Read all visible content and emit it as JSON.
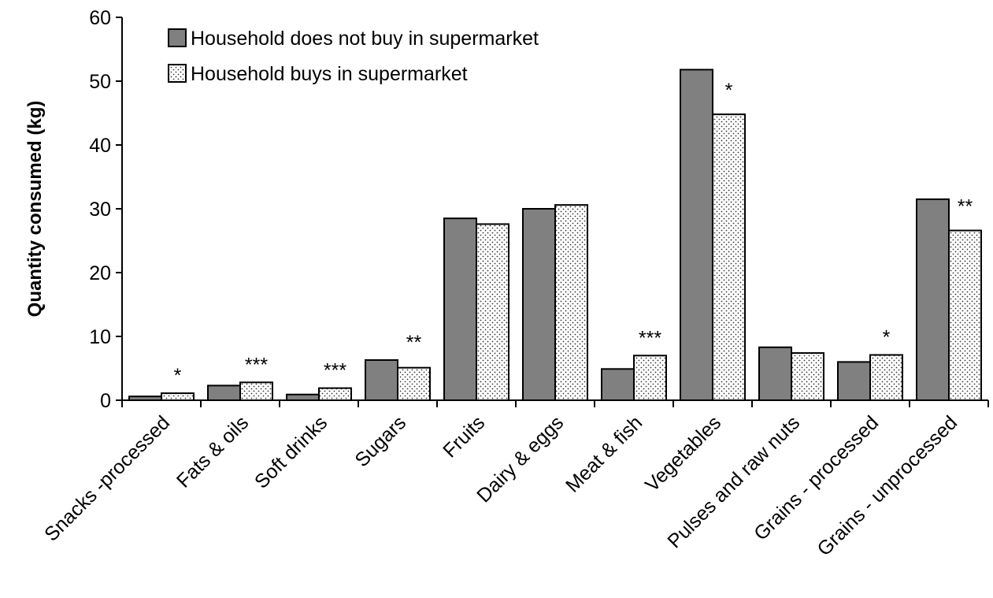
{
  "chart_data": {
    "type": "bar",
    "title": "",
    "xlabel": "",
    "ylabel": "Quantity consumed (kg)",
    "ylim": [
      0,
      60
    ],
    "yticks": [
      0,
      10,
      20,
      30,
      40,
      50,
      60
    ],
    "grid": false,
    "legend_position": "top-left",
    "categories": [
      "Snacks -processed",
      "Fats & oils",
      "Soft drinks",
      "Sugars",
      "Fruits",
      "Dairy & eggs",
      "Meat & fish",
      "Vegetables",
      "Pulses and raw nuts",
      "Grains - processed",
      "Grains - unprocessed"
    ],
    "series": [
      {
        "name": "Household does not buy in supermarket",
        "color": "#808080",
        "pattern": "solid",
        "values": [
          0.6,
          2.3,
          0.9,
          6.3,
          28.5,
          30.0,
          4.9,
          51.8,
          8.3,
          6.0,
          31.5
        ]
      },
      {
        "name": "Household buys in supermarket",
        "color": "#ffffff",
        "pattern": "dotted",
        "values": [
          1.1,
          2.8,
          1.9,
          5.1,
          27.6,
          30.6,
          7.0,
          44.8,
          7.4,
          7.1,
          26.6
        ]
      }
    ],
    "significance": [
      "*",
      "***",
      "***",
      "**",
      "",
      "",
      "***",
      "*",
      "",
      "*",
      "**"
    ]
  }
}
